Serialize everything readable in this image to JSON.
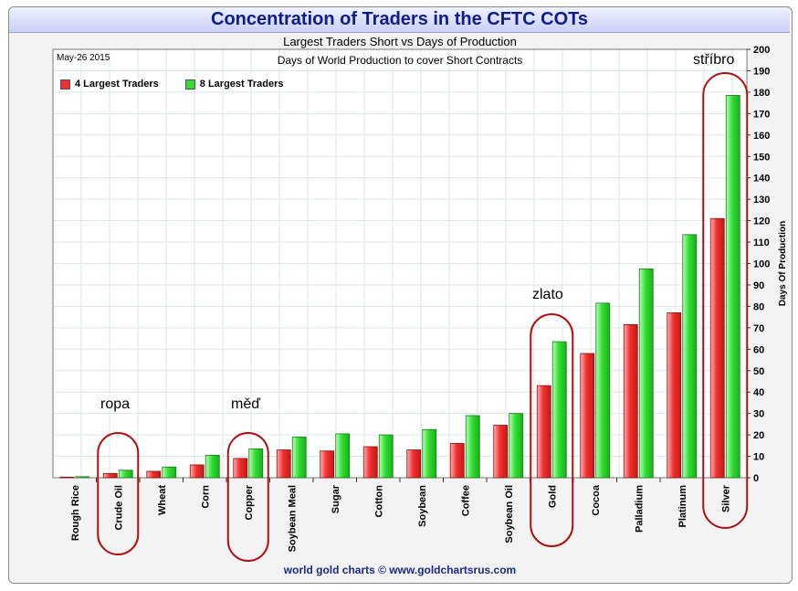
{
  "title": "Concentration of Traders in the CFTC COTs",
  "subtitle": "Largest Traders Short vs Days of Production",
  "subtitle2": "Days of World Production to cover Short Contracts",
  "date": "May-26 2015",
  "footer": "world gold charts © www.goldchartsrus.com",
  "colors": {
    "red": "#f03030",
    "green": "#33dd33",
    "circle": "#b01010"
  },
  "chart_data": {
    "type": "bar",
    "categories": [
      "Rough Rice",
      "Crude Oil",
      "Wheat",
      "Corn",
      "Copper",
      "Soybean Meal",
      "Sugar",
      "Cotton",
      "Soybean",
      "Coffee",
      "Soybean Oil",
      "Gold",
      "Cocoa",
      "Palladium",
      "Platinum",
      "Silver"
    ],
    "series": [
      {
        "name": "4 Largest Traders",
        "values": [
          0.3,
          2,
          3,
          6,
          9,
          13,
          12.5,
          14.5,
          13,
          16,
          24.5,
          43,
          58,
          71.5,
          77,
          121
        ]
      },
      {
        "name": "8 Largest Traders",
        "values": [
          0.5,
          3.5,
          5,
          10.5,
          13.5,
          19,
          20.5,
          20,
          22.5,
          29,
          30,
          63.5,
          81.5,
          97.5,
          113.5,
          178.5
        ]
      }
    ],
    "ylabel": "Days Of Production",
    "ylim": [
      0,
      200
    ],
    "yticks": [
      0,
      10,
      20,
      30,
      40,
      50,
      60,
      70,
      80,
      90,
      100,
      110,
      120,
      130,
      140,
      150,
      160,
      170,
      180,
      190,
      200
    ],
    "grid": true,
    "legend": "top-left"
  },
  "annotations": [
    {
      "text": "ropa",
      "category": "Crude Oil"
    },
    {
      "text": "měď",
      "category": "Copper"
    },
    {
      "text": "zlato",
      "category": "Gold"
    },
    {
      "text": "stříbro",
      "category": "Silver"
    }
  ]
}
